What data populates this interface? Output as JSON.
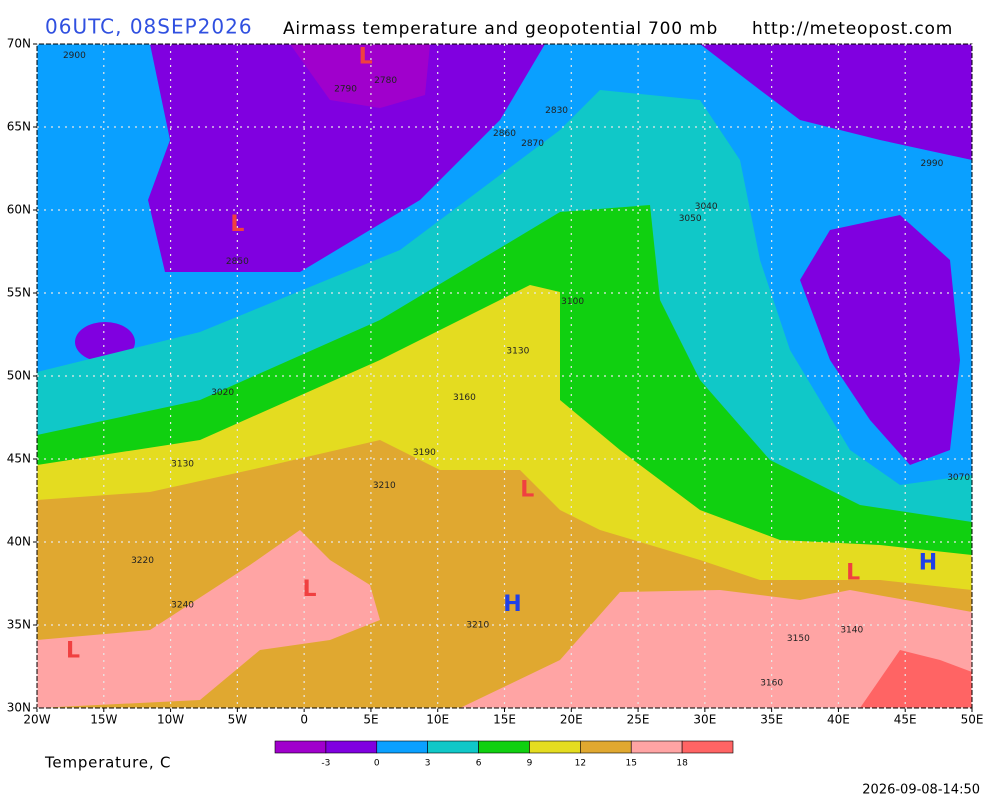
{
  "header": {
    "time": "06UTC, 08SEP2026",
    "description": "Airmass temperature and geopotential 700 mb",
    "url": "http://meteopost.com"
  },
  "chart_data": {
    "type": "map",
    "xlim": [
      -20,
      50
    ],
    "ylim": [
      30,
      70
    ],
    "xticks": [
      {
        "value": -20,
        "label": "20W"
      },
      {
        "value": -15,
        "label": "15W"
      },
      {
        "value": -10,
        "label": "10W"
      },
      {
        "value": -5,
        "label": "5W"
      },
      0,
      {
        "value": 5,
        "label": "5E"
      },
      {
        "value": 10,
        "label": "10E"
      },
      {
        "value": 15,
        "label": "15E"
      },
      {
        "value": 20,
        "label": "20E"
      },
      {
        "value": 25,
        "label": "25E"
      },
      {
        "value": 30,
        "label": "30E"
      },
      {
        "value": 35,
        "label": "35E"
      },
      {
        "value": 40,
        "label": "40E"
      },
      {
        "value": 45,
        "label": "45E"
      },
      {
        "value": 50,
        "label": "50E"
      }
    ],
    "yticks": [
      {
        "value": 30,
        "label": "30N"
      },
      {
        "value": 35,
        "label": "35N"
      },
      {
        "value": 40,
        "label": "40N"
      },
      {
        "value": 45,
        "label": "45N"
      },
      {
        "value": 50,
        "label": "50N"
      },
      {
        "value": 55,
        "label": "55N"
      },
      {
        "value": 60,
        "label": "60N"
      },
      {
        "value": 65,
        "label": "65N"
      },
      {
        "value": 70,
        "label": "70N"
      }
    ],
    "grid": true,
    "systems": [
      {
        "label": "L",
        "lon": 4.6,
        "lat": 69.2,
        "color": "#f04040"
      },
      {
        "label": "L",
        "lon": -5.0,
        "lat": 59.1,
        "color": "#f04040"
      },
      {
        "label": "L",
        "lon": 16.7,
        "lat": 43.1,
        "color": "#f04040"
      },
      {
        "label": "L",
        "lon": 0.4,
        "lat": 37.1,
        "color": "#f04040"
      },
      {
        "label": "L",
        "lon": -17.3,
        "lat": 33.4,
        "color": "#f04040"
      },
      {
        "label": "L",
        "lon": 41.1,
        "lat": 38.1,
        "color": "#f04040"
      },
      {
        "label": "H",
        "lon": 15.6,
        "lat": 36.2,
        "color": "#2040e8"
      },
      {
        "label": "H",
        "lon": 46.7,
        "lat": 38.7,
        "color": "#2040e8"
      }
    ],
    "contour_labels": [
      {
        "value": 2900,
        "lon": -17.2,
        "lat": 69.3
      },
      {
        "value": 2790,
        "lon": 3.1,
        "lat": 67.3
      },
      {
        "value": 2780,
        "lon": 6.1,
        "lat": 67.8
      },
      {
        "value": 2830,
        "lon": 18.9,
        "lat": 66.0
      },
      {
        "value": 2860,
        "lon": 15.0,
        "lat": 64.6
      },
      {
        "value": 2870,
        "lon": 17.1,
        "lat": 64.0
      },
      {
        "value": 3040,
        "lon": 30.1,
        "lat": 60.2
      },
      {
        "value": 3050,
        "lon": 28.9,
        "lat": 59.5
      },
      {
        "value": 2850,
        "lon": -5.0,
        "lat": 56.9
      },
      {
        "value": 2990,
        "lon": 47.0,
        "lat": 62.8
      },
      {
        "value": 3100,
        "lon": 20.1,
        "lat": 54.5
      },
      {
        "value": 3130,
        "lon": 16.0,
        "lat": 51.5
      },
      {
        "value": 3160,
        "lon": 12.0,
        "lat": 48.7
      },
      {
        "value": 3190,
        "lon": 9.0,
        "lat": 45.4
      },
      {
        "value": 3210,
        "lon": 6.0,
        "lat": 43.4
      },
      {
        "value": 3020,
        "lon": -6.1,
        "lat": 49.0
      },
      {
        "value": 3130,
        "lon": -9.1,
        "lat": 44.7
      },
      {
        "value": 3220,
        "lon": -12.1,
        "lat": 38.9
      },
      {
        "value": 3240,
        "lon": -9.1,
        "lat": 36.2
      },
      {
        "value": 3210,
        "lon": 13.0,
        "lat": 35.0
      },
      {
        "value": 3150,
        "lon": 37.0,
        "lat": 34.2
      },
      {
        "value": 3160,
        "lon": 35.0,
        "lat": 31.5
      },
      {
        "value": 3140,
        "lon": 41.0,
        "lat": 34.7
      },
      {
        "value": 3070,
        "lon": 49.0,
        "lat": 43.9
      }
    ]
  },
  "legend": {
    "title": "Temperature, C",
    "colors": [
      "#a000cc",
      "#8000e0",
      "#0aa0ff",
      "#10c8c8",
      "#10d010",
      "#e4dc20",
      "#e0a830",
      "#ffa4a4",
      "#ff6464"
    ],
    "ticks": [
      -3,
      0,
      3,
      6,
      9,
      12,
      15,
      18
    ]
  },
  "timestamp": "2026-09-08-14:50"
}
